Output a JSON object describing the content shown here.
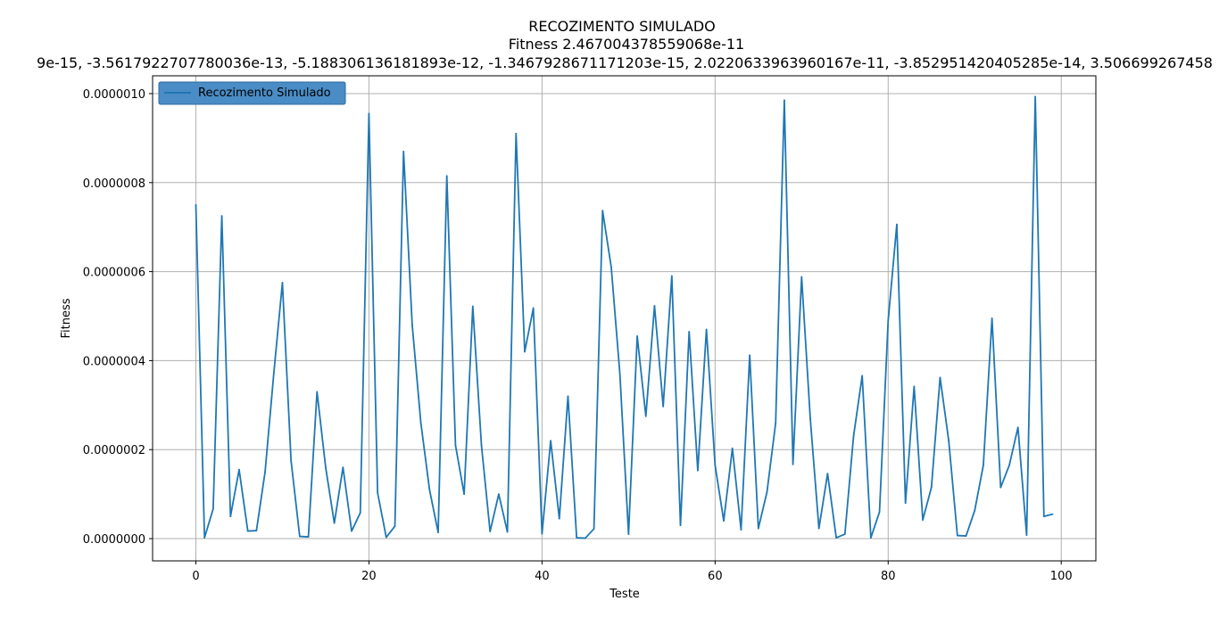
{
  "chart_data": {
    "type": "line",
    "title": "RECOZIMENTO SIMULADO",
    "subtitle": "Fitness 2.467004378559068e-11",
    "subtitle2": "9e-15, -3.5617922707780036e-13, -5.188306136181893e-12, -1.3467928671171203e-15, 2.0220633963960167e-11, -3.852951420405285e-14, 3.506699267458",
    "xlabel": "Teste",
    "ylabel": "Fitness",
    "xlim": [
      -5,
      104
    ],
    "ylim": [
      -5e-08,
      1.04e-06
    ],
    "x_ticks": [
      0,
      20,
      40,
      60,
      80,
      100
    ],
    "x_tick_labels": [
      "0",
      "20",
      "40",
      "60",
      "80",
      "100"
    ],
    "y_ticks": [
      0,
      2e-07,
      4e-07,
      6e-07,
      8e-07,
      1e-06
    ],
    "y_tick_labels": [
      "0.0000000",
      "0.0000002",
      "0.0000004",
      "0.0000006",
      "0.0000008",
      "0.0000010"
    ],
    "grid": true,
    "legend_position": "top-left",
    "series": [
      {
        "name": "Recozimento Simulado",
        "color": "#1f77b4",
        "x": [
          0,
          1,
          2,
          3,
          4,
          5,
          6,
          7,
          8,
          9,
          10,
          11,
          12,
          13,
          14,
          15,
          16,
          17,
          18,
          19,
          20,
          21,
          22,
          23,
          24,
          25,
          26,
          27,
          28,
          29,
          30,
          31,
          32,
          33,
          34,
          35,
          36,
          37,
          38,
          39,
          40,
          41,
          42,
          43,
          44,
          45,
          46,
          47,
          48,
          49,
          50,
          51,
          52,
          53,
          54,
          55,
          56,
          57,
          58,
          59,
          60,
          61,
          62,
          63,
          64,
          65,
          66,
          67,
          68,
          69,
          70,
          71,
          72,
          73,
          74,
          75,
          76,
          77,
          78,
          79,
          80,
          81,
          82,
          83,
          84,
          85,
          86,
          87,
          88,
          89,
          90,
          91,
          92,
          93,
          94,
          95,
          96,
          97,
          98,
          99
        ],
        "values": [
          7.5e-07,
          2e-09,
          6.7e-08,
          7.25e-07,
          5e-08,
          1.55e-07,
          1.7e-08,
          1.8e-08,
          1.5e-07,
          3.7e-07,
          5.75e-07,
          1.75e-07,
          5e-09,
          4e-09,
          3.3e-07,
          1.6e-07,
          3.5e-08,
          1.6e-07,
          1.7e-08,
          5.8e-08,
          9.55e-07,
          1.03e-07,
          3e-09,
          2.8e-08,
          8.7e-07,
          4.8e-07,
          2.6e-07,
          1.1e-07,
          1.4e-08,
          8.15e-07,
          2.1e-07,
          1e-07,
          5.22e-07,
          2.1e-07,
          1.6e-08,
          1e-07,
          1.5e-08,
          9.1e-07,
          4.2e-07,
          5.18e-07,
          1.1e-08,
          2.2e-07,
          4.5e-08,
          3.2e-07,
          2e-09,
          1e-09,
          2.2e-08,
          7.37e-07,
          6.1e-07,
          3.7e-07,
          1e-08,
          4.55e-07,
          2.75e-07,
          5.23e-07,
          2.97e-07,
          5.9e-07,
          3e-08,
          4.65e-07,
          1.53e-07,
          4.7e-07,
          1.65e-07,
          4e-08,
          2.03e-07,
          2e-08,
          4.12e-07,
          2.3e-08,
          1.05e-07,
          2.6e-07,
          9.85e-07,
          1.67e-07,
          5.88e-07,
          2.7e-07,
          2.3e-08,
          1.46e-07,
          2e-09,
          1e-08,
          2.3e-07,
          3.66e-07,
          2e-09,
          6e-08,
          4.9e-07,
          7.06e-07,
          8e-08,
          3.42e-07,
          4.2e-08,
          1.15e-07,
          3.62e-07,
          2.2e-07,
          7e-09,
          6e-09,
          6.3e-08,
          1.65e-07,
          4.95e-07,
          1.15e-07,
          1.65e-07,
          2.5e-07,
          8e-09,
          9.93e-07,
          5e-08,
          5.5e-08
        ]
      }
    ]
  }
}
